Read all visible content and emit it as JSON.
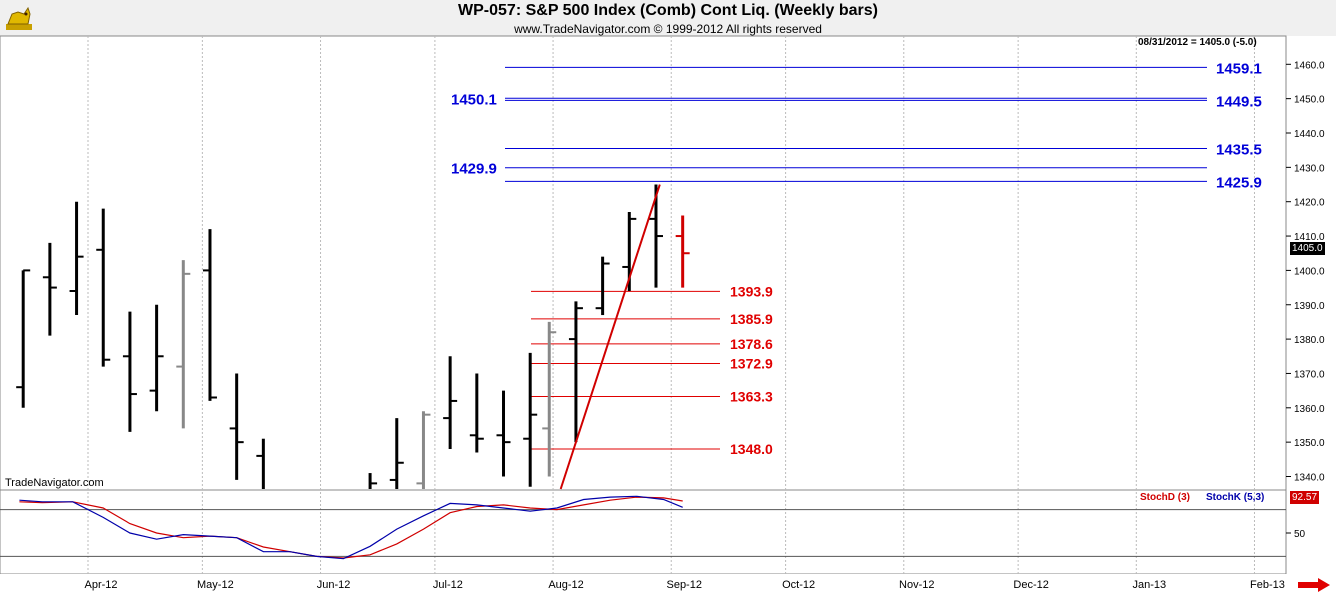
{
  "header": {
    "title": "WP-057:  S&P 500 Index (Comb) Cont Liq.  (Weekly bars)",
    "subtitle": "www.TradeNavigator.com © 1999-2012 All rights reserved",
    "brand": "TradeNavigator.com",
    "price_info": "08/31/2012 = 1405.0 (-5.0)",
    "last_price": "1405.0",
    "stoch_value": "92.57"
  },
  "colors": {
    "bar": "#000000",
    "bar_gray": "#888888",
    "bar_current": "#d00000",
    "blue_level": "#0000d8",
    "red_level": "#e00000",
    "trendline": "#d00000",
    "stoch_d": "#d00000",
    "stoch_k": "#0000aa",
    "vgrid": "#bbbbbb"
  },
  "icons": {
    "logo": "bull-icon",
    "scroll": "right-arrow-icon"
  },
  "chart_data": {
    "type": "ohlc",
    "title": "WP-057:  S&P 500 Index (Comb) Cont Liq.  (Weekly bars)",
    "ylim": [
      1333,
      1465
    ],
    "y_ticks": [
      1340,
      1350,
      1360,
      1370,
      1380,
      1390,
      1400,
      1410,
      1420,
      1430,
      1440,
      1450,
      1460
    ],
    "x_months": [
      {
        "label": "Apr-12",
        "day": 0
      },
      {
        "label": "May-12",
        "day": 30
      },
      {
        "label": "Jun-12",
        "day": 61
      },
      {
        "label": "Jul-12",
        "day": 91
      },
      {
        "label": "Aug-12",
        "day": 122
      },
      {
        "label": "Sep-12",
        "day": 153
      },
      {
        "label": "Oct-12",
        "day": 183
      },
      {
        "label": "Nov-12",
        "day": 214
      },
      {
        "label": "Dec-12",
        "day": 244
      },
      {
        "label": "Jan-13",
        "day": 275
      },
      {
        "label": "Feb-13",
        "day": 306
      }
    ],
    "x_range_days": [
      -20,
      312
    ],
    "bars": [
      {
        "day": -17,
        "o": 1366,
        "h": 1400,
        "l": 1360,
        "c": 1400,
        "color": "black"
      },
      {
        "day": -10,
        "o": 1398,
        "h": 1408,
        "l": 1381,
        "c": 1395,
        "color": "black"
      },
      {
        "day": -3,
        "o": 1394,
        "h": 1420,
        "l": 1387,
        "c": 1404,
        "color": "black"
      },
      {
        "day": 4,
        "o": 1406,
        "h": 1418,
        "l": 1372,
        "c": 1374,
        "color": "black"
      },
      {
        "day": 11,
        "o": 1375,
        "h": 1388,
        "l": 1353,
        "c": 1364,
        "color": "black"
      },
      {
        "day": 18,
        "o": 1365,
        "h": 1390,
        "l": 1359,
        "c": 1375,
        "color": "black"
      },
      {
        "day": 25,
        "o": 1372,
        "h": 1403,
        "l": 1354,
        "c": 1399,
        "color": "gray"
      },
      {
        "day": 32,
        "o": 1400,
        "h": 1412,
        "l": 1362,
        "c": 1363,
        "color": "black"
      },
      {
        "day": 39,
        "o": 1354,
        "h": 1370,
        "l": 1339,
        "c": 1350,
        "color": "black"
      },
      {
        "day": 46,
        "o": 1346,
        "h": 1351,
        "l": 1326,
        "c": 1332,
        "color": "black"
      },
      {
        "day": 74,
        "o": 1335,
        "h": 1341,
        "l": 1329,
        "c": 1338,
        "color": "black"
      },
      {
        "day": 81,
        "o": 1339,
        "h": 1357,
        "l": 1333,
        "c": 1344,
        "color": "black"
      },
      {
        "day": 88,
        "o": 1338,
        "h": 1359,
        "l": 1330,
        "c": 1358,
        "color": "gray"
      },
      {
        "day": 95,
        "o": 1357,
        "h": 1375,
        "l": 1348,
        "c": 1362,
        "color": "black"
      },
      {
        "day": 102,
        "o": 1352,
        "h": 1370,
        "l": 1347,
        "c": 1351,
        "color": "black"
      },
      {
        "day": 109,
        "o": 1352,
        "h": 1365,
        "l": 1340,
        "c": 1350,
        "color": "black"
      },
      {
        "day": 116,
        "o": 1351,
        "h": 1376,
        "l": 1337,
        "c": 1358,
        "color": "black"
      },
      {
        "day": 121,
        "o": 1354,
        "h": 1385,
        "l": 1340,
        "c": 1382,
        "color": "gray"
      },
      {
        "day": 128,
        "o": 1380,
        "h": 1391,
        "l": 1350,
        "c": 1389,
        "color": "black"
      },
      {
        "day": 135,
        "o": 1389,
        "h": 1404,
        "l": 1387,
        "c": 1402,
        "color": "black"
      },
      {
        "day": 142,
        "o": 1401,
        "h": 1417,
        "l": 1394,
        "c": 1415,
        "color": "black"
      },
      {
        "day": 149,
        "o": 1415,
        "h": 1425,
        "l": 1395,
        "c": 1410,
        "color": "black"
      },
      {
        "day": 156,
        "o": 1410,
        "h": 1416,
        "l": 1395,
        "c": 1405,
        "color": "red"
      }
    ],
    "blue_levels": [
      {
        "price": 1459.1,
        "label": "1459.1",
        "side": "right"
      },
      {
        "price": 1449.5,
        "label": "1449.5",
        "side": "right"
      },
      {
        "price": 1450.1,
        "label": "1450.1",
        "side": "left"
      },
      {
        "price": 1435.5,
        "label": "1435.5",
        "side": "right"
      },
      {
        "price": 1429.9,
        "label": "1429.9",
        "side": "left"
      },
      {
        "price": 1425.9,
        "label": "1425.9",
        "side": "right"
      }
    ],
    "red_levels": [
      {
        "price": 1393.9,
        "label": "1393.9"
      },
      {
        "price": 1385.9,
        "label": "1385.9"
      },
      {
        "price": 1378.6,
        "label": "1378.6"
      },
      {
        "price": 1372.9,
        "label": "1372.9"
      },
      {
        "price": 1363.3,
        "label": "1363.3"
      },
      {
        "price": 1348.0,
        "label": "1348.0"
      }
    ],
    "trendline": {
      "from": {
        "day": 124,
        "price": 1328
      },
      "to": {
        "day": 150,
        "price": 1425
      }
    },
    "stochastic": {
      "labels": {
        "d": "StochD (3)",
        "k": "StochK (5,3)"
      },
      "ylim": [
        0,
        100
      ],
      "y_ticks": [
        50
      ],
      "levels": [
        80,
        20
      ],
      "k": [
        [
          -18,
          92
        ],
        [
          -12,
          90
        ],
        [
          -4,
          90
        ],
        [
          4,
          70
        ],
        [
          11,
          50
        ],
        [
          18,
          42
        ],
        [
          25,
          48
        ],
        [
          32,
          46
        ],
        [
          39,
          44
        ],
        [
          46,
          26
        ],
        [
          53,
          26
        ],
        [
          60,
          20
        ],
        [
          67,
          17
        ],
        [
          74,
          33
        ],
        [
          81,
          55
        ],
        [
          88,
          72
        ],
        [
          95,
          88
        ],
        [
          102,
          86
        ],
        [
          109,
          82
        ],
        [
          116,
          78
        ],
        [
          123,
          82
        ],
        [
          130,
          93
        ],
        [
          137,
          96
        ],
        [
          144,
          97
        ],
        [
          151,
          93
        ],
        [
          156,
          83
        ]
      ],
      "d": [
        [
          -18,
          90
        ],
        [
          -12,
          89
        ],
        [
          -4,
          90
        ],
        [
          4,
          82
        ],
        [
          11,
          62
        ],
        [
          18,
          50
        ],
        [
          25,
          44
        ],
        [
          32,
          46
        ],
        [
          39,
          44
        ],
        [
          46,
          32
        ],
        [
          53,
          26
        ],
        [
          60,
          20
        ],
        [
          67,
          18
        ],
        [
          74,
          22
        ],
        [
          81,
          36
        ],
        [
          88,
          55
        ],
        [
          95,
          76
        ],
        [
          102,
          84
        ],
        [
          109,
          86
        ],
        [
          116,
          82
        ],
        [
          123,
          80
        ],
        [
          130,
          86
        ],
        [
          137,
          92
        ],
        [
          144,
          96
        ],
        [
          151,
          95
        ],
        [
          156,
          91
        ]
      ]
    }
  }
}
